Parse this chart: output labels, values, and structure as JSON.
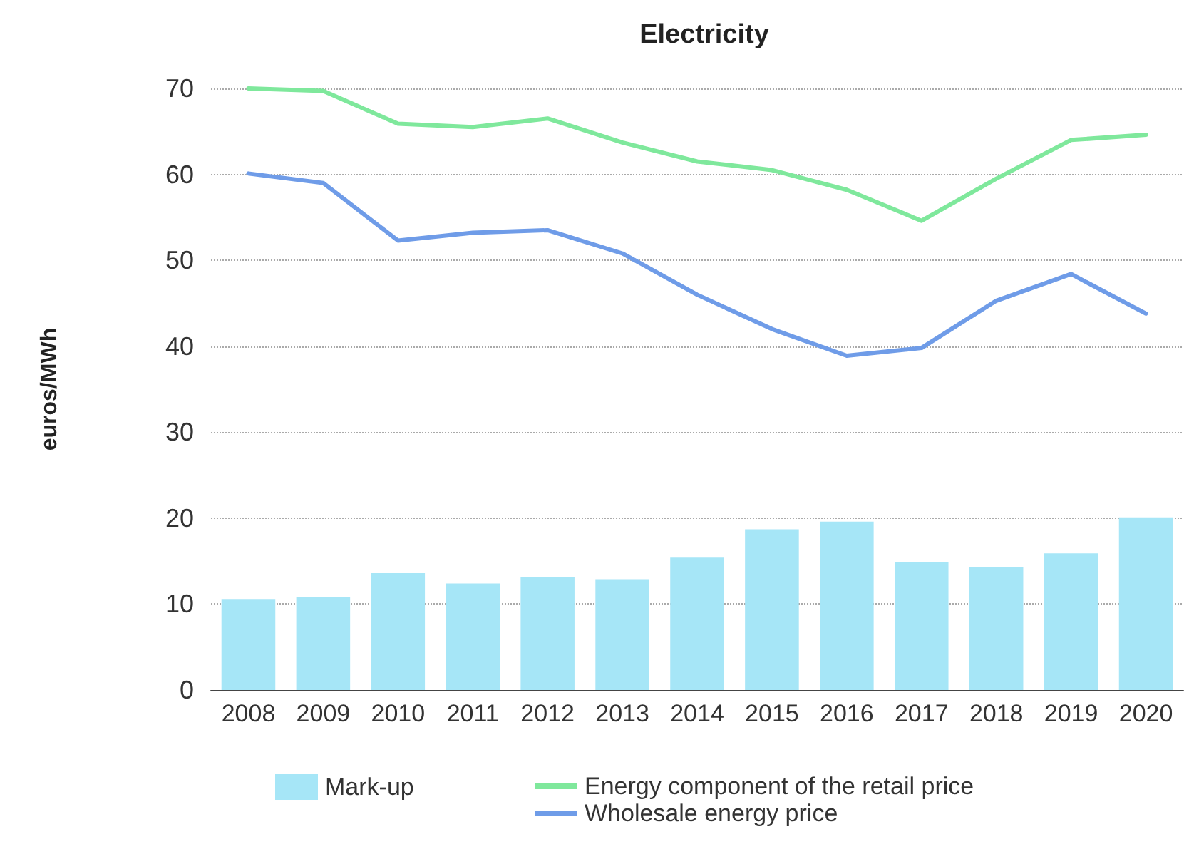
{
  "chart_data": {
    "type": "bar",
    "title": "Electricity",
    "ylabel": "euros/MWh",
    "categories": [
      "2008",
      "2009",
      "2010",
      "2011",
      "2012",
      "2013",
      "2014",
      "2015",
      "2016",
      "2017",
      "2018",
      "2019",
      "2020"
    ],
    "series": [
      {
        "name": "Mark-up",
        "color": "#a6e6f7",
        "values": [
          10.6,
          10.8,
          13.6,
          12.4,
          13.1,
          12.9,
          15.4,
          18.7,
          19.6,
          14.9,
          14.3,
          15.9,
          20.1
        ]
      },
      {
        "name": "Energy component of the retail price",
        "type": "line",
        "color": "#7fe89c",
        "values": [
          70,
          69.7,
          65.9,
          65.5,
          66.5,
          63.7,
          61.5,
          60.5,
          58.2,
          54.6,
          59.5,
          64,
          64.6
        ]
      },
      {
        "name": "Wholesale energy price",
        "type": "line",
        "color": "#6f9ce8",
        "values": [
          60.1,
          59,
          52.3,
          53.2,
          53.5,
          50.8,
          46,
          42,
          38.9,
          39.8,
          45.3,
          48.4,
          43.8
        ]
      }
    ],
    "ylim": [
      0,
      70
    ],
    "yticks": [
      0,
      10,
      20,
      30,
      40,
      50,
      60,
      70
    ],
    "grid": "y",
    "legend": "bottom",
    "marker": "none",
    "line_style": "solid"
  }
}
